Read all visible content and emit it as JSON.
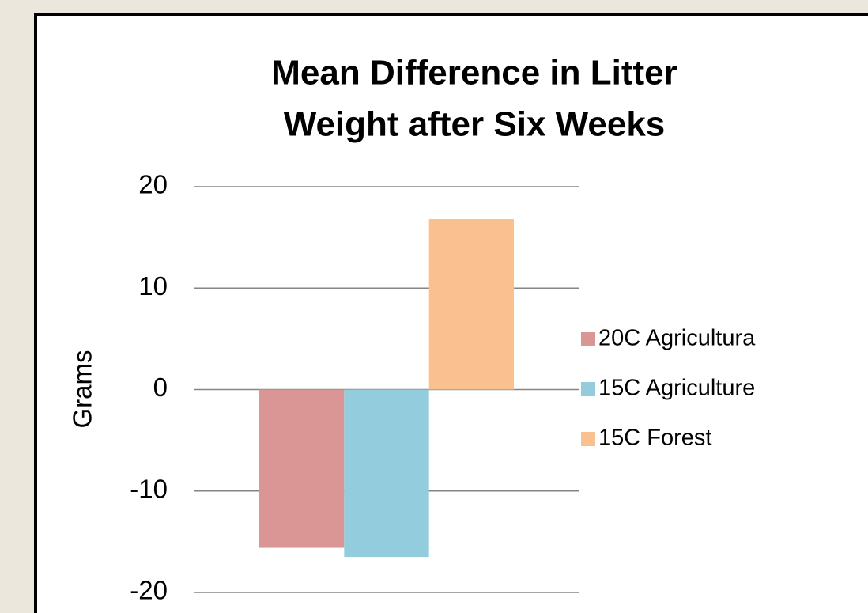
{
  "chart_data": {
    "type": "bar",
    "title": [
      "Mean Difference in Litter",
      "Weight after Six Weeks"
    ],
    "y_label": "Grams",
    "categories": [
      null
    ],
    "series": [
      {
        "name": "20C Agricultura",
        "color": "#d99694",
        "values": [
          -15.6
        ]
      },
      {
        "name": "15C Agriculture",
        "color": "#93cddd",
        "values": [
          -16.5
        ]
      },
      {
        "name": "15C Forest",
        "color": "#fac090",
        "values": [
          16.8
        ]
      }
    ],
    "ylim": [
      -20,
      20
    ],
    "yticks": [
      -20,
      -10,
      0,
      10,
      20
    ],
    "grid": true,
    "legend": "right"
  }
}
